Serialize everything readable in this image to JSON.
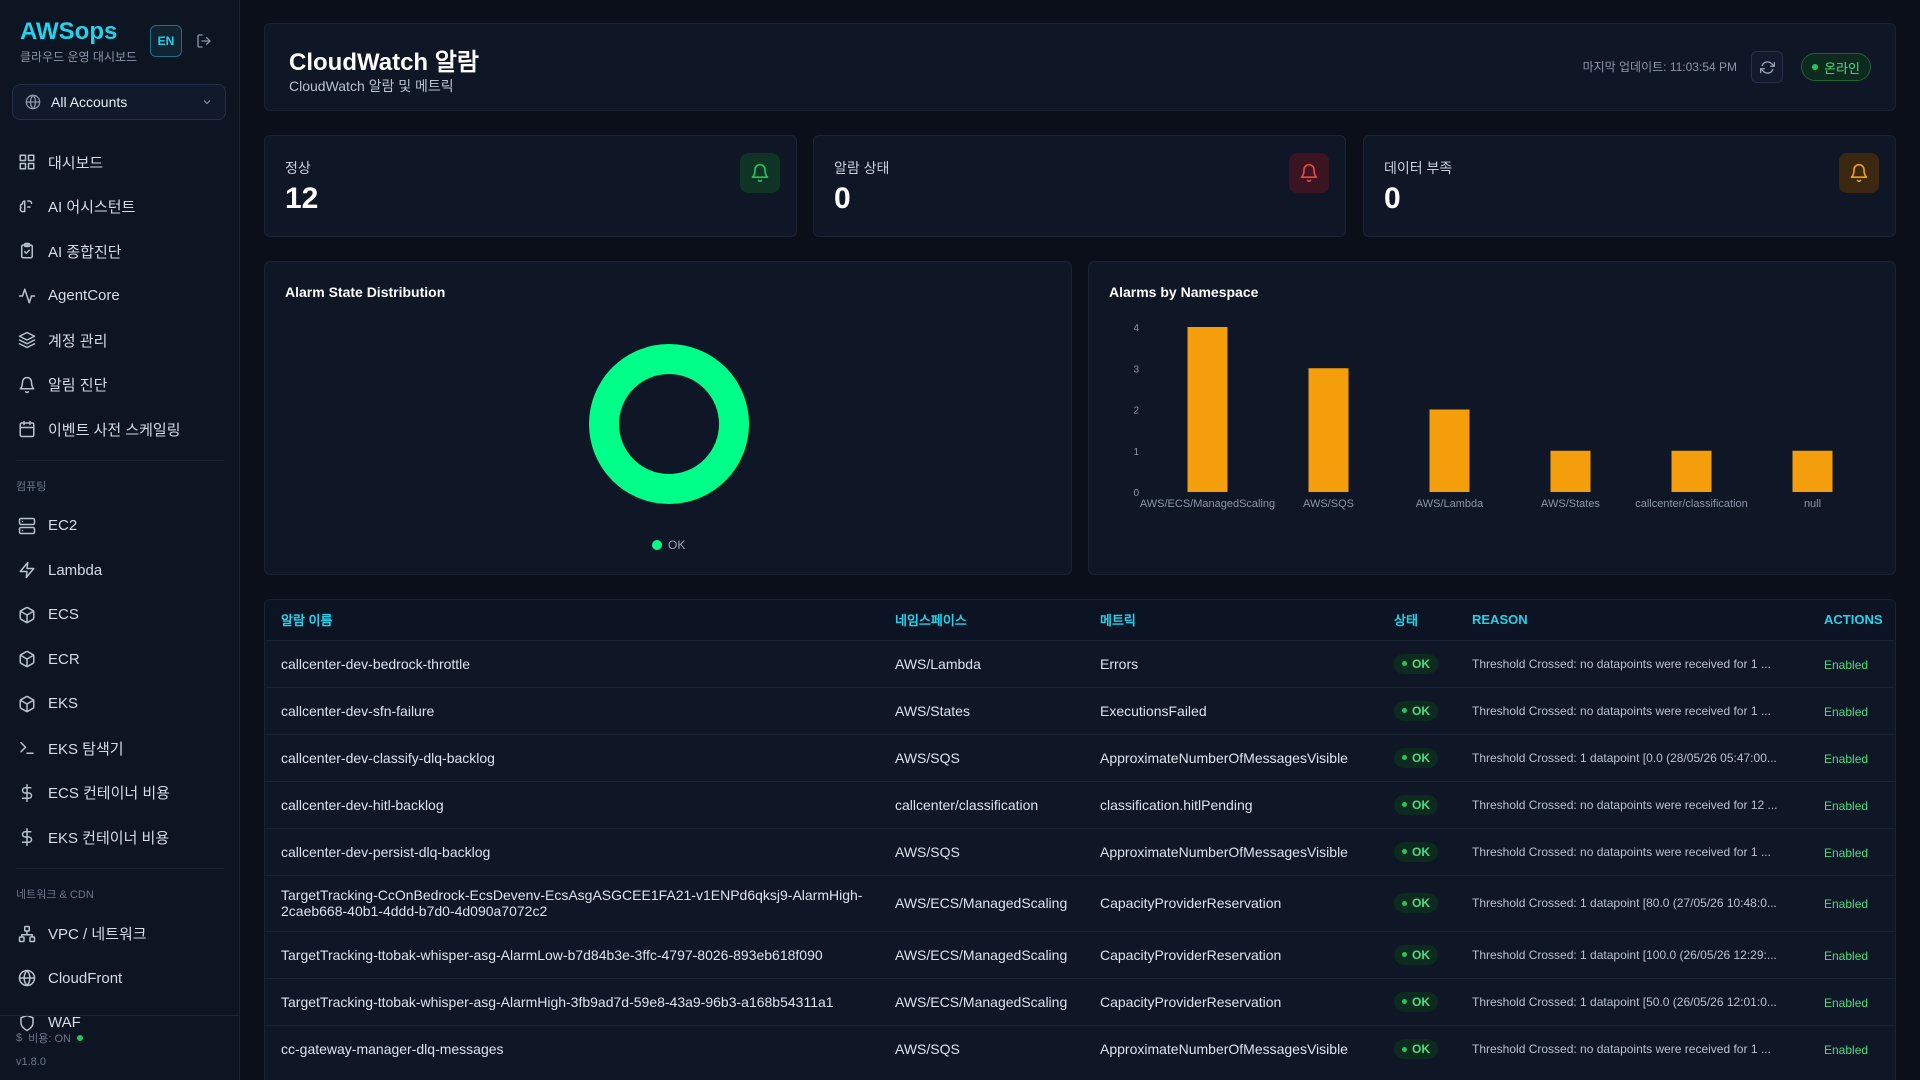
{
  "brand": {
    "title": "AWSops",
    "subtitle": "클라우드 운영 대시보드",
    "lang": "EN"
  },
  "account_select": {
    "value": "All Accounts"
  },
  "sidebar": {
    "items_main": [
      {
        "label": "대시보드",
        "icon": "dashboard-icon"
      },
      {
        "label": "AI 어시스턴트",
        "icon": "brain-icon"
      },
      {
        "label": "AI 종합진단",
        "icon": "clipboard-icon"
      },
      {
        "label": "AgentCore",
        "icon": "activity-icon"
      },
      {
        "label": "계정 관리",
        "icon": "layers-icon"
      },
      {
        "label": "알림 진단",
        "icon": "bell-icon"
      },
      {
        "label": "이벤트 사전 스케일링",
        "icon": "calendar-icon"
      }
    ],
    "section_compute": "컴퓨팅",
    "items_compute": [
      {
        "label": "EC2",
        "icon": "server-icon"
      },
      {
        "label": "Lambda",
        "icon": "lambda-icon"
      },
      {
        "label": "ECS",
        "icon": "box-icon"
      },
      {
        "label": "ECR",
        "icon": "box-icon"
      },
      {
        "label": "EKS",
        "icon": "box-icon"
      },
      {
        "label": "EKS 탐색기",
        "icon": "terminal-icon"
      },
      {
        "label": "ECS 컨테이너 비용",
        "icon": "dollar-icon"
      },
      {
        "label": "EKS 컨테이너 비용",
        "icon": "dollar-icon"
      }
    ],
    "section_network": "네트워크 & CDN",
    "items_network": [
      {
        "label": "VPC / 네트워크",
        "icon": "network-icon"
      },
      {
        "label": "CloudFront",
        "icon": "globe-icon"
      },
      {
        "label": "WAF",
        "icon": "shield-icon"
      }
    ],
    "footer": {
      "cost": "비용: ON",
      "version": "v1.8.0"
    }
  },
  "header": {
    "title": "CloudWatch 알람",
    "subtitle": "CloudWatch 알람 및 메트릭",
    "last_update": "마지막 업데이트: 11:03:54 PM",
    "status": "온라인"
  },
  "stats": [
    {
      "label": "정상",
      "value": "12",
      "color": "#22c55e",
      "bg": "#0f3324"
    },
    {
      "label": "알람 상태",
      "value": "0",
      "color": "#ef4444",
      "bg": "#3a1420"
    },
    {
      "label": "데이터 부족",
      "value": "0",
      "color": "#f59e0b",
      "bg": "#3a2810"
    }
  ],
  "chart_data": [
    {
      "type": "pie",
      "title": "Alarm State Distribution",
      "categories": [
        "OK"
      ],
      "values": [
        12
      ],
      "colors": [
        "#00ff88"
      ],
      "legend": "bottom"
    },
    {
      "type": "bar",
      "title": "Alarms by Namespace",
      "categories": [
        "AWS/ECS/ManagedScaling",
        "AWS/SQS",
        "AWS/Lambda",
        "AWS/States",
        "callcenter/classification",
        "null"
      ],
      "values": [
        4,
        3,
        2,
        1,
        1,
        1
      ],
      "ylim": [
        0,
        4
      ],
      "yticks": [
        0,
        1,
        2,
        3,
        4
      ],
      "color": "#f59e0b",
      "grid": false
    }
  ],
  "table": {
    "headers": [
      "알람 이름",
      "네임스페이스",
      "메트릭",
      "상태",
      "REASON",
      "ACTIONS"
    ],
    "rows": [
      {
        "name": "callcenter-dev-bedrock-throttle",
        "ns": "AWS/Lambda",
        "metric": "Errors",
        "state": "OK",
        "reason": "Threshold Crossed: no datapoints were received for 1 ...",
        "actions": "Enabled"
      },
      {
        "name": "callcenter-dev-sfn-failure",
        "ns": "AWS/States",
        "metric": "ExecutionsFailed",
        "state": "OK",
        "reason": "Threshold Crossed: no datapoints were received for 1 ...",
        "actions": "Enabled"
      },
      {
        "name": "callcenter-dev-classify-dlq-backlog",
        "ns": "AWS/SQS",
        "metric": "ApproximateNumberOfMessagesVisible",
        "state": "OK",
        "reason": "Threshold Crossed: 1 datapoint [0.0 (28/05/26 05:47:00...",
        "actions": "Enabled"
      },
      {
        "name": "callcenter-dev-hitl-backlog",
        "ns": "callcenter/classification",
        "metric": "classification.hitlPending",
        "state": "OK",
        "reason": "Threshold Crossed: no datapoints were received for 12 ...",
        "actions": "Enabled"
      },
      {
        "name": "callcenter-dev-persist-dlq-backlog",
        "ns": "AWS/SQS",
        "metric": "ApproximateNumberOfMessagesVisible",
        "state": "OK",
        "reason": "Threshold Crossed: no datapoints were received for 1 ...",
        "actions": "Enabled"
      },
      {
        "name": "TargetTracking-CcOnBedrock-EcsDevenv-EcsAsgASGCEE1FA21-v1ENPd6qksj9-AlarmHigh-2caeb668-40b1-4ddd-b7d0-4d090a7072c2",
        "ns": "AWS/ECS/ManagedScaling",
        "metric": "CapacityProviderReservation",
        "state": "OK",
        "reason": "Threshold Crossed: 1 datapoint [80.0 (27/05/26 10:48:0...",
        "actions": "Enabled"
      },
      {
        "name": "TargetTracking-ttobak-whisper-asg-AlarmLow-b7d84b3e-3ffc-4797-8026-893eb618f090",
        "ns": "AWS/ECS/ManagedScaling",
        "metric": "CapacityProviderReservation",
        "state": "OK",
        "reason": "Threshold Crossed: 1 datapoint [100.0 (26/05/26 12:29:...",
        "actions": "Enabled"
      },
      {
        "name": "TargetTracking-ttobak-whisper-asg-AlarmHigh-3fb9ad7d-59e8-43a9-96b3-a168b54311a1",
        "ns": "AWS/ECS/ManagedScaling",
        "metric": "CapacityProviderReservation",
        "state": "OK",
        "reason": "Threshold Crossed: 1 datapoint [50.0 (26/05/26 12:01:0...",
        "actions": "Enabled"
      },
      {
        "name": "cc-gateway-manager-dlq-messages",
        "ns": "AWS/SQS",
        "metric": "ApproximateNumberOfMessagesVisible",
        "state": "OK",
        "reason": "Threshold Crossed: no datapoints were received for 1 ...",
        "actions": "Enabled"
      }
    ]
  }
}
